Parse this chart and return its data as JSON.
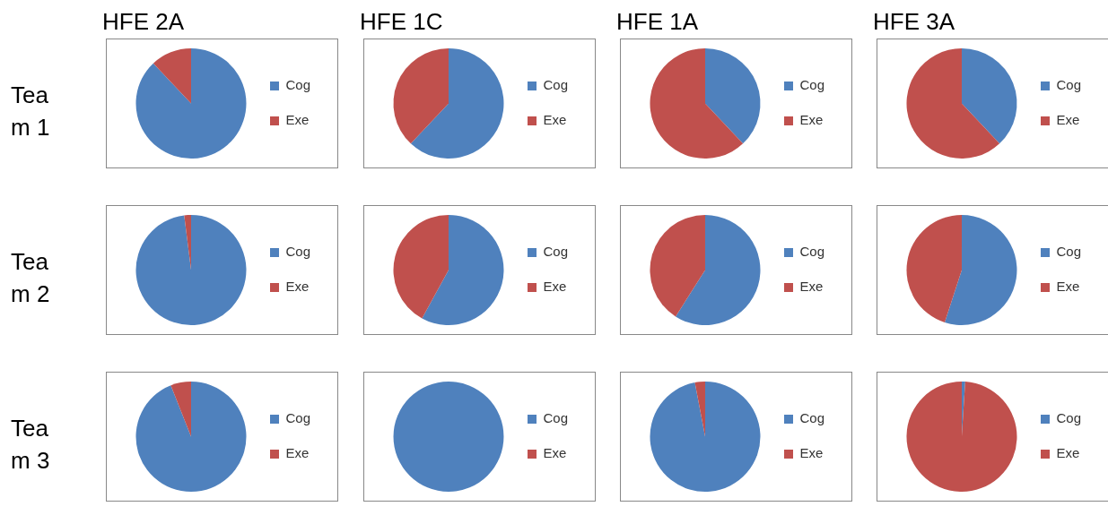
{
  "chart_data": [
    {
      "type": "pie",
      "title": "HFE 2A",
      "ylabel": "Team 1",
      "categories": [
        "Cog",
        "Exe"
      ],
      "values": [
        88,
        12
      ],
      "colors": [
        "#4f81bd",
        "#c0504d"
      ],
      "legend": "right"
    },
    {
      "type": "pie",
      "title": "HFE 1C",
      "categories": [
        "Cog",
        "Exe"
      ],
      "values": [
        62,
        38
      ],
      "colors": [
        "#4f81bd",
        "#c0504d"
      ],
      "legend": "right"
    },
    {
      "type": "pie",
      "title": "HFE 1A",
      "categories": [
        "Cog",
        "Exe"
      ],
      "values": [
        38,
        62
      ],
      "colors": [
        "#4f81bd",
        "#c0504d"
      ],
      "legend": "right"
    },
    {
      "type": "pie",
      "title": "HFE 3A",
      "categories": [
        "Cog",
        "Exe"
      ],
      "values": [
        38,
        62
      ],
      "colors": [
        "#4f81bd",
        "#c0504d"
      ],
      "legend": "right"
    },
    {
      "type": "pie",
      "ylabel": "Team 2",
      "categories": [
        "Cog",
        "Exe"
      ],
      "values": [
        98,
        2
      ],
      "colors": [
        "#4f81bd",
        "#c0504d"
      ],
      "legend": "right"
    },
    {
      "type": "pie",
      "categories": [
        "Cog",
        "Exe"
      ],
      "values": [
        58,
        42
      ],
      "colors": [
        "#4f81bd",
        "#c0504d"
      ],
      "legend": "right"
    },
    {
      "type": "pie",
      "categories": [
        "Cog",
        "Exe"
      ],
      "values": [
        59,
        41
      ],
      "colors": [
        "#4f81bd",
        "#c0504d"
      ],
      "legend": "right"
    },
    {
      "type": "pie",
      "categories": [
        "Cog",
        "Exe"
      ],
      "values": [
        55,
        45
      ],
      "colors": [
        "#4f81bd",
        "#c0504d"
      ],
      "legend": "right"
    },
    {
      "type": "pie",
      "ylabel": "Team 3",
      "categories": [
        "Cog",
        "Exe"
      ],
      "values": [
        94,
        6
      ],
      "colors": [
        "#4f81bd",
        "#c0504d"
      ],
      "legend": "right"
    },
    {
      "type": "pie",
      "categories": [
        "Cog",
        "Exe"
      ],
      "values": [
        100,
        0
      ],
      "colors": [
        "#4f81bd",
        "#c0504d"
      ],
      "legend": "right"
    },
    {
      "type": "pie",
      "categories": [
        "Cog",
        "Exe"
      ],
      "values": [
        97,
        3
      ],
      "colors": [
        "#4f81bd",
        "#c0504d"
      ],
      "legend": "right"
    },
    {
      "type": "pie",
      "categories": [
        "Cog",
        "Exe"
      ],
      "values": [
        1,
        99
      ],
      "colors": [
        "#4f81bd",
        "#c0504d"
      ],
      "legend": "right"
    }
  ]
}
